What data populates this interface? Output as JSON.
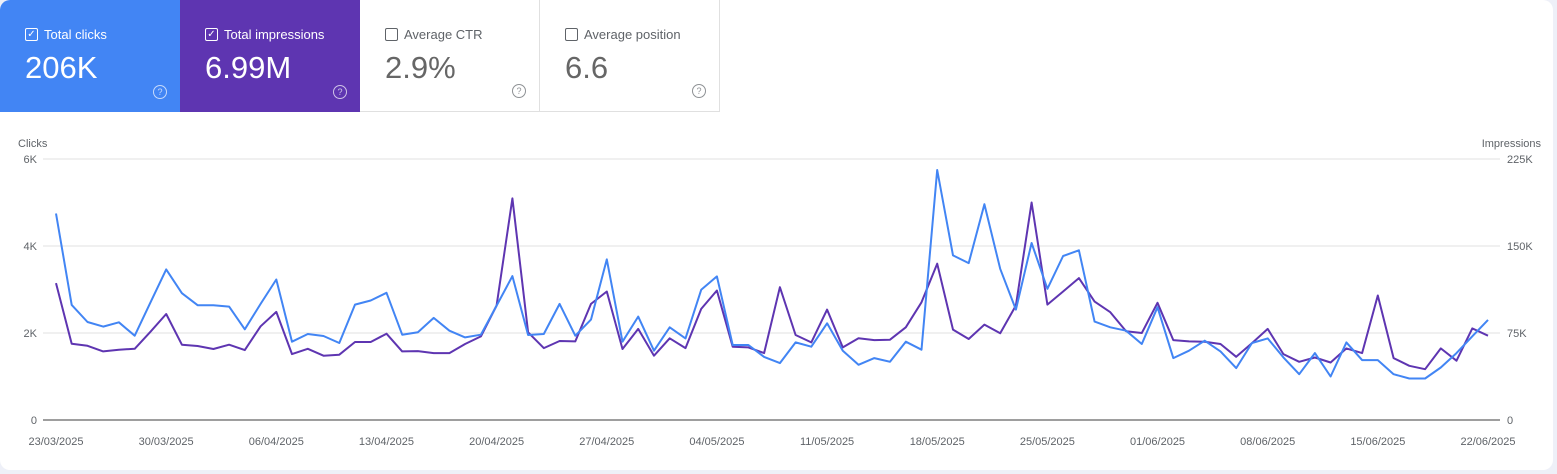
{
  "metrics": [
    {
      "label": "Total clicks",
      "value": "206K",
      "checked": true,
      "color": "#4285f4"
    },
    {
      "label": "Total impressions",
      "value": "6.99M",
      "checked": true,
      "color": "#5e35b1"
    },
    {
      "label": "Average CTR",
      "value": "2.9%",
      "checked": false
    },
    {
      "label": "Average position",
      "value": "6.6",
      "checked": false
    }
  ],
  "chart_data": {
    "type": "line",
    "left_axis": {
      "label": "Clicks",
      "ticks": [
        "0",
        "2K",
        "4K",
        "6K"
      ],
      "range": [
        0,
        6000
      ]
    },
    "right_axis": {
      "label": "Impressions",
      "ticks": [
        "0",
        "75K",
        "150K",
        "225K"
      ],
      "range": [
        0,
        225000
      ]
    },
    "grid": true,
    "x_tick_labels": [
      "23/03/2025",
      "30/03/2025",
      "06/04/2025",
      "13/04/2025",
      "20/04/2025",
      "27/04/2025",
      "04/05/2025",
      "11/05/2025",
      "18/05/2025",
      "25/05/2025",
      "01/06/2025",
      "08/06/2025",
      "15/06/2025",
      "22/06/2025"
    ],
    "x_range": [
      "23/03/2025",
      "22/06/2025"
    ],
    "series": [
      {
        "axis": "left",
        "color": "#4285f4",
        "values": [
          4746,
          2646,
          2254,
          2146,
          2246,
          1938,
          2700,
          3462,
          2915,
          2638,
          2638,
          2608,
          2085,
          2670,
          3231,
          1800,
          1977,
          1931,
          1769,
          2654,
          2746,
          2923,
          1961,
          2015,
          2346,
          2054,
          1900,
          1961,
          2631,
          3308,
          1954,
          1977,
          2669,
          1938,
          2308,
          3692,
          1800,
          2377,
          1592,
          2131,
          1877,
          2992,
          3300,
          1723,
          1723,
          1450,
          1308,
          1785,
          1685,
          2223,
          1592,
          1269,
          1423,
          1338,
          1800,
          1615,
          5746,
          3785,
          3608,
          4962,
          3477,
          2538,
          4069,
          3015,
          3769,
          3900,
          2262,
          2131,
          2054,
          1746,
          2592,
          1423,
          1592,
          1823,
          1577,
          1192,
          1769,
          1877,
          1438,
          1054,
          1538,
          1000,
          1785,
          1377,
          1377,
          1054,
          954,
          954,
          1208,
          1538,
          1923,
          2300
        ]
      },
      {
        "axis": "right",
        "color": "#5e35b1",
        "values": [
          118000,
          65800,
          64000,
          59100,
          60600,
          61400,
          76000,
          91400,
          64900,
          63800,
          61200,
          64900,
          60300,
          80800,
          93200,
          56800,
          61400,
          55400,
          56300,
          67200,
          67200,
          74400,
          59100,
          59400,
          57700,
          57700,
          65500,
          72100,
          98700,
          191000,
          75600,
          62000,
          68100,
          67800,
          100100,
          110800,
          61200,
          78500,
          55400,
          70400,
          62000,
          95800,
          111600,
          63200,
          62600,
          57700,
          114500,
          73300,
          66900,
          95200,
          62600,
          70400,
          68900,
          69200,
          79900,
          101500,
          134700,
          77900,
          69800,
          82200,
          74700,
          98700,
          187500,
          99500,
          110800,
          122300,
          102100,
          92900,
          76500,
          75000,
          101000,
          68900,
          67800,
          67500,
          65500,
          54500,
          66300,
          78500,
          56800,
          50200,
          53900,
          49600,
          61700,
          57700,
          107300,
          53400,
          46700,
          43800,
          61700,
          51100,
          79000,
          72700
        ]
      }
    ]
  }
}
